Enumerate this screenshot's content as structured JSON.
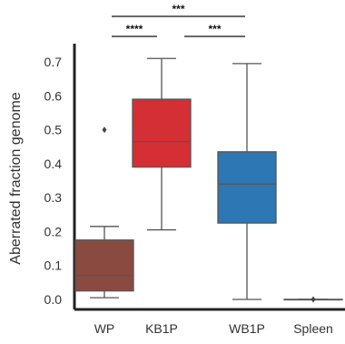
{
  "chart_data": {
    "type": "box",
    "title": "",
    "xlabel": "",
    "ylabel": "Aberrated fraction genome",
    "ylim": [
      0,
      0.7
    ],
    "yticks": [
      "0.0",
      "0.1",
      "0.2",
      "0.3",
      "0.4",
      "0.5",
      "0.6",
      "0.7"
    ],
    "categories": [
      "WP",
      "KB1P",
      "WB1P",
      "Spleen"
    ],
    "boxes": [
      {
        "category": "WP",
        "color": "#8B4A3F",
        "whisker_low": 0.005,
        "q1": 0.025,
        "median": 0.07,
        "q3": 0.175,
        "whisker_high": 0.215,
        "outliers": [
          0.5
        ]
      },
      {
        "category": "KB1P",
        "color": "#D42F35",
        "whisker_low": 0.205,
        "q1": 0.39,
        "median": 0.465,
        "q3": 0.59,
        "whisker_high": 0.71,
        "outliers": []
      },
      {
        "category": "WB1P",
        "color": "#2C77B4",
        "whisker_low": 0.0,
        "q1": 0.225,
        "median": 0.34,
        "q3": 0.435,
        "whisker_high": 0.695,
        "outliers": []
      },
      {
        "category": "Spleen",
        "color": "#C8C8C8",
        "whisker_low": 0.0,
        "q1": 0.0,
        "median": 0.0,
        "q3": 0.0,
        "whisker_high": 0.0,
        "outliers": [
          0.0
        ]
      }
    ],
    "significance": [
      {
        "from": "WP",
        "to": "WB1P",
        "label": "***"
      },
      {
        "from": "WP",
        "to": "KB1P",
        "label": "****"
      },
      {
        "from": "KB1P",
        "to": "WB1P",
        "label": "***"
      }
    ],
    "grid": false,
    "legend": "none"
  }
}
